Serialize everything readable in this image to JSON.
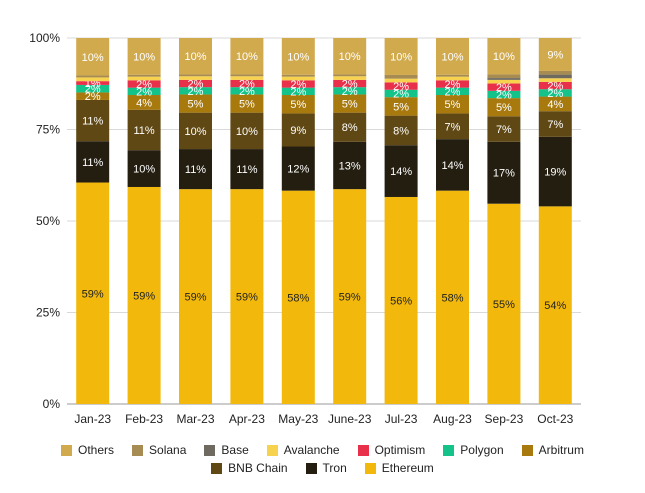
{
  "chart_data": {
    "type": "bar",
    "stacked": true,
    "normalized": true,
    "categories": [
      "Jan-23",
      "Feb-23",
      "Mar-23",
      "Apr-23",
      "May-23",
      "June-23",
      "Jul-23",
      "Aug-23",
      "Sep-23",
      "Oct-23"
    ],
    "y_ticks": [
      "0%",
      "25%",
      "50%",
      "75%",
      "100%"
    ],
    "ylim": [
      0,
      100
    ],
    "grid": true,
    "legend_position": "bottom",
    "series": [
      {
        "name": "Ethereum",
        "color": "#F2B90C",
        "label_color": "#222222",
        "values": [
          59,
          59,
          59,
          59,
          58,
          59,
          56,
          58,
          55,
          54
        ],
        "labels": [
          "59%",
          "59%",
          "59%",
          "59%",
          "58%",
          "59%",
          "56%",
          "58%",
          "55%",
          "54%"
        ]
      },
      {
        "name": "Tron",
        "color": "#241E10",
        "label_color": "#ffffff",
        "values": [
          11,
          10,
          11,
          11,
          12,
          13,
          14,
          14,
          17,
          19
        ],
        "labels": [
          "11%",
          "10%",
          "11%",
          "11%",
          "12%",
          "13%",
          "14%",
          "14%",
          "17%",
          "19%"
        ]
      },
      {
        "name": "BNB Chain",
        "color": "#5F4814",
        "label_color": "#ffffff",
        "values": [
          11,
          11,
          10,
          10,
          9,
          8,
          8,
          7,
          7,
          7
        ],
        "labels": [
          "11%",
          "11%",
          "10%",
          "10%",
          "9%",
          "8%",
          "8%",
          "7%",
          "7%",
          "7%"
        ]
      },
      {
        "name": "Arbitrum",
        "color": "#A87A0E",
        "label_color": "#ffffff",
        "values": [
          2,
          4,
          5,
          5,
          5,
          5,
          5,
          5,
          5,
          4
        ],
        "labels": [
          "2%",
          "4%",
          "5%",
          "5%",
          "5%",
          "5%",
          "5%",
          "5%",
          "5%",
          "4%"
        ]
      },
      {
        "name": "Polygon",
        "color": "#13C38A",
        "label_color": "#ffffff",
        "values": [
          2,
          2,
          2,
          2,
          2,
          2,
          2,
          2,
          2,
          2
        ],
        "labels": [
          "2%",
          "2%",
          "2%",
          "2%",
          "2%",
          "2%",
          "2%",
          "2%",
          "2%",
          "2%"
        ]
      },
      {
        "name": "Optimism",
        "color": "#E8304A",
        "label_color": "#ffffff",
        "values": [
          1,
          2,
          2,
          2,
          2,
          2,
          2,
          2,
          2,
          2
        ],
        "labels": [
          "1%",
          "2%",
          "2%",
          "2%",
          "2%",
          "2%",
          "2%",
          "2%",
          "2%",
          "2%"
        ]
      },
      {
        "name": "Avalanche",
        "color": "#F6D24E",
        "label_color": "#222222",
        "values": [
          1,
          1,
          1,
          1,
          1,
          1,
          1,
          1,
          1,
          1
        ],
        "labels": [
          "",
          "",
          "",
          "",
          "",
          "",
          "",
          "",
          "",
          ""
        ]
      },
      {
        "name": "Base",
        "color": "#6E6A60",
        "label_color": "#ffffff",
        "values": [
          0,
          0,
          0,
          0,
          0,
          0,
          0,
          0,
          0.5,
          1
        ],
        "labels": [
          "",
          "",
          "",
          "",
          "",
          "",
          "",
          "",
          "",
          ""
        ]
      },
      {
        "name": "Solana",
        "color": "#A68C52",
        "label_color": "#ffffff",
        "values": [
          0.5,
          0.5,
          0.5,
          0.5,
          0.5,
          0.5,
          1,
          0.5,
          1,
          1
        ],
        "labels": [
          "",
          "",
          "",
          "",
          "",
          "",
          "",
          "",
          "",
          ""
        ]
      },
      {
        "name": "Others",
        "color": "#D2AA4E",
        "label_color": "#ffffff",
        "values": [
          10,
          10,
          10,
          10,
          10,
          10,
          10,
          10,
          10,
          9
        ],
        "labels": [
          "10%",
          "10%",
          "10%",
          "10%",
          "10%",
          "10%",
          "10%",
          "10%",
          "10%",
          "9%"
        ]
      }
    ],
    "legend_rows": [
      [
        "Others",
        "Solana",
        "Base",
        "Avalanche",
        "Optimism",
        "Polygon",
        "Arbitrum"
      ],
      [
        "BNB Chain",
        "Tron",
        "Ethereum"
      ]
    ]
  }
}
